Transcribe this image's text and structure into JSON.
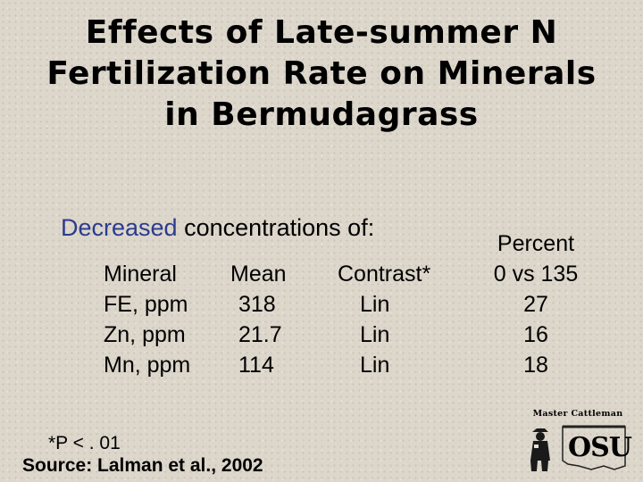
{
  "slide": {
    "title_lines": [
      "Effects of Late-summer N",
      "Fertilization Rate on Minerals",
      "in Bermudagrass"
    ],
    "subhead": {
      "highlight": "Decreased",
      "rest": " concentrations of:"
    },
    "columns": {
      "mineral": {
        "header": "Mineral",
        "rows": [
          "FE, ppm",
          "Zn, ppm",
          "Mn, ppm"
        ]
      },
      "mean": {
        "header": "Mean",
        "rows": [
          "318",
          "21.7",
          "114"
        ]
      },
      "contrast": {
        "header": "Contrast*",
        "rows": [
          "Lin",
          "Lin",
          "Lin"
        ]
      },
      "percent": {
        "header_line1": "Percent",
        "header_line2": "0 vs 135",
        "rows": [
          "27",
          "16",
          "18"
        ]
      }
    },
    "footnote": "*P < . 01",
    "source": "Source: Lalman et al., 2002",
    "logo": {
      "top_text": "Master Cattleman",
      "mark_text": "OSU"
    },
    "colors": {
      "highlight": "#2b3c8c",
      "background": "#dcd6cb"
    }
  }
}
